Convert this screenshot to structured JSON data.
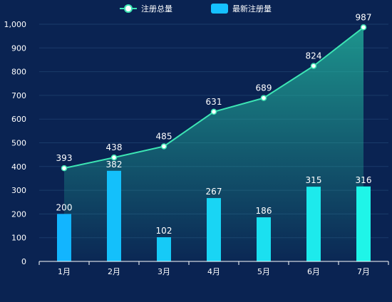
{
  "chart_data": {
    "type": "bar",
    "categories": [
      "1月",
      "2月",
      "3月",
      "4月",
      "5月",
      "6月",
      "7月"
    ],
    "series": [
      {
        "name": "注册总量",
        "type": "line",
        "values": [
          393,
          438,
          485,
          631,
          689,
          824,
          987
        ]
      },
      {
        "name": "最新注册量",
        "type": "bar",
        "values": [
          200,
          382,
          102,
          267,
          186,
          315,
          316
        ]
      }
    ],
    "ylim": [
      0,
      1000
    ],
    "yticks": [
      0,
      100,
      200,
      300,
      400,
      500,
      600,
      700,
      800,
      900,
      1000
    ],
    "ytick_labels": [
      "0",
      "100",
      "200",
      "300",
      "400",
      "500",
      "600",
      "700",
      "800",
      "900",
      "1,000"
    ],
    "grid": true,
    "legend_position": "top-center",
    "colors": {
      "background": "#0a2352",
      "line": "#3de6b4",
      "area_top": "#23b9a0",
      "bar_bottom": "#12b5ff",
      "bar_top": "#1ff5e8",
      "legend_bar": "#15c0ff",
      "text": "#ffffff",
      "gridline": "#1a3b6a"
    }
  }
}
